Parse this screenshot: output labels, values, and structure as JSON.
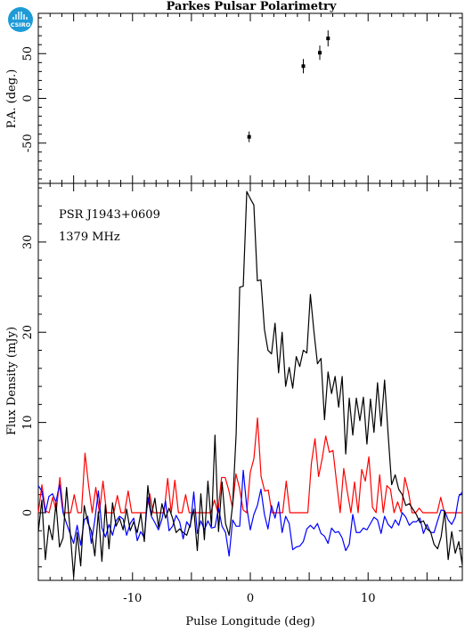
{
  "chart_data": {
    "type": "line",
    "title": "Parkes Pulsar Polarimetry",
    "logo_text": "CSIRO",
    "annotations": [
      "PSR J1943+0609",
      "1379 MHz"
    ],
    "xlabel": "Pulse Longitude (deg)",
    "xlim": [
      -18,
      18
    ],
    "x_ticks": [
      -10,
      0,
      10
    ],
    "colors": {
      "total": "#000000",
      "linear": "#ff0000",
      "circular": "#0000ff"
    },
    "pa_panel": {
      "ylabel": "P.A. (deg.)",
      "ylim": [
        -95,
        95
      ],
      "y_ticks": [
        -50,
        0,
        50
      ],
      "points": [
        {
          "x": -0.1,
          "y": -43,
          "err": 6
        },
        {
          "x": 4.5,
          "y": 36,
          "err": 8
        },
        {
          "x": 5.9,
          "y": 51,
          "err": 8
        },
        {
          "x": 6.6,
          "y": 67,
          "err": 9
        }
      ]
    },
    "flux_panel": {
      "ylabel": "Flux Density (mJy)",
      "ylim": [
        -7.5,
        36.5
      ],
      "y_ticks": [
        0,
        10,
        20,
        30
      ],
      "series": [
        {
          "key": "total",
          "values": [
            -2.1,
            1.4,
            -5.2,
            -1.4,
            -3.0,
            1.1,
            -3.8,
            -2.8,
            2.8,
            -2.0,
            -7.1,
            -2.2,
            -5.9,
            0.8,
            -1.1,
            -2.0,
            -4.8,
            0.1,
            -5.4,
            0.9,
            -4.0,
            1.1,
            -1.5,
            -0.6,
            -1.9,
            0.4,
            -2.0,
            -1.0,
            -2.2,
            -0.1,
            -3.2,
            3.0,
            -0.3,
            1.6,
            -1.6,
            1.0,
            -0.6,
            0.5,
            -0.6,
            -2.2,
            -1.8,
            -2.2,
            -2.5,
            -1.3,
            0.4,
            -4.2,
            2.1,
            -3.0,
            3.5,
            -1.5,
            8.6,
            -2.1,
            3.4,
            -1.2,
            -2.5,
            0.9,
            8.8,
            25.0,
            25.1,
            35.6,
            34.8,
            34.1,
            25.7,
            25.8,
            20.3,
            18.0,
            17.6,
            21.0,
            15.5,
            20.0,
            14.0,
            16.1,
            13.8,
            17.3,
            16.2,
            18.0,
            17.7,
            24.2,
            20.1,
            16.5,
            17.1,
            10.3,
            15.6,
            13.2,
            15.1,
            11.7,
            15.1,
            6.5,
            12.7,
            8.6,
            12.7,
            10.2,
            12.8,
            7.6,
            12.6,
            8.9,
            14.4,
            9.6,
            14.7,
            8.7,
            3.1,
            4.2,
            2.6,
            2.0,
            0.8,
            1.0,
            0.4,
            -0.2,
            -1.1,
            -0.9,
            -1.8,
            -2.1,
            -3.5,
            -4.0,
            -2.7,
            0.2,
            -5.2,
            -2.1,
            -4.5,
            -3.2,
            -5.8
          ]
        },
        {
          "key": "linear",
          "values": [
            0.0,
            3.1,
            0.2,
            0.0,
            1.7,
            0.2,
            3.9,
            0.0,
            0.0,
            0.0,
            2.0,
            0.0,
            0.0,
            6.6,
            3.0,
            0.0,
            2.8,
            0.0,
            3.5,
            0.0,
            0.0,
            0.0,
            1.9,
            0.0,
            0.0,
            2.4,
            0.0,
            0.0,
            0.0,
            0.0,
            0.0,
            2.1,
            0.0,
            0.0,
            0.0,
            0.0,
            3.8,
            0.0,
            3.6,
            0.0,
            0.0,
            2.0,
            0.0,
            0.0,
            0.0,
            0.0,
            0.0,
            0.0,
            0.0,
            1.4,
            0.0,
            3.9,
            3.9,
            2.5,
            0.6,
            4.3,
            2.7,
            0.3,
            0.0,
            4.5,
            6.0,
            10.5,
            4.0,
            2.4,
            2.5,
            0.0,
            0.0,
            0.0,
            0.0,
            3.5,
            0.0,
            0.0,
            0.0,
            0.0,
            0.0,
            0.0,
            5.5,
            8.2,
            4.0,
            6.0,
            8.5,
            6.7,
            6.9,
            3.4,
            0.0,
            4.9,
            2.3,
            0.0,
            3.4,
            0.0,
            4.8,
            3.5,
            6.2,
            0.6,
            0.0,
            4.2,
            0.0,
            3.0,
            2.6,
            0.0,
            1.2,
            0.0,
            3.9,
            2.3,
            0.0,
            0.0,
            0.5,
            0.0,
            0.0,
            0.0,
            0.0,
            0.0,
            1.7,
            0.0,
            0.0,
            0.0,
            0.0,
            0.0,
            0.0
          ]
        },
        {
          "key": "circular",
          "values": [
            3.0,
            2.4,
            0.0,
            1.8,
            2.1,
            1.2,
            3.1,
            0.0,
            -1.2,
            -2.3,
            -3.4,
            -1.4,
            -3.6,
            -0.8,
            -0.4,
            -3.4,
            -0.8,
            2.4,
            -1.7,
            -2.7,
            -1.3,
            -2.5,
            -0.9,
            -0.4,
            -0.7,
            -2.5,
            -1.2,
            -0.6,
            -3.1,
            -2.1,
            -2.8,
            1.7,
            -0.4,
            -1.1,
            -1.9,
            -0.7,
            1.3,
            -2.0,
            -1.5,
            -0.3,
            -1.0,
            -2.9,
            -1.0,
            -1.6,
            2.3,
            -2.3,
            -0.9,
            -1.9,
            -0.9,
            -1.7,
            -1.6,
            0.5,
            -1.5,
            -2.2,
            -4.8,
            -0.8,
            -1.5,
            -1.5,
            4.7,
            0.6,
            -1.9,
            -0.2,
            0.8,
            2.6,
            -0.2,
            -1.8,
            0.8,
            -0.6,
            1.2,
            -2.2,
            -0.4,
            -1.2,
            -4.1,
            -3.8,
            -3.7,
            -3.2,
            -1.8,
            -1.4,
            -1.8,
            -1.2,
            -2.3,
            -2.6,
            -3.4,
            -1.7,
            -2.2,
            -2.1,
            -2.8,
            -4.2,
            -3.5,
            -0.2,
            -2.2,
            -2.2,
            -1.7,
            -1.9,
            -1.2,
            -0.5,
            -0.8,
            -2.3,
            -0.4,
            -1.3,
            -1.7,
            -0.8,
            -1.4,
            0.0,
            -0.5,
            -1.4,
            -1.0,
            -1.0,
            -0.6,
            -2.3,
            -1.3,
            -2.2,
            -2.2,
            -0.9,
            0.3,
            0.2,
            -0.8,
            -1.3,
            -0.5,
            1.8,
            2.3
          ]
        }
      ]
    }
  }
}
